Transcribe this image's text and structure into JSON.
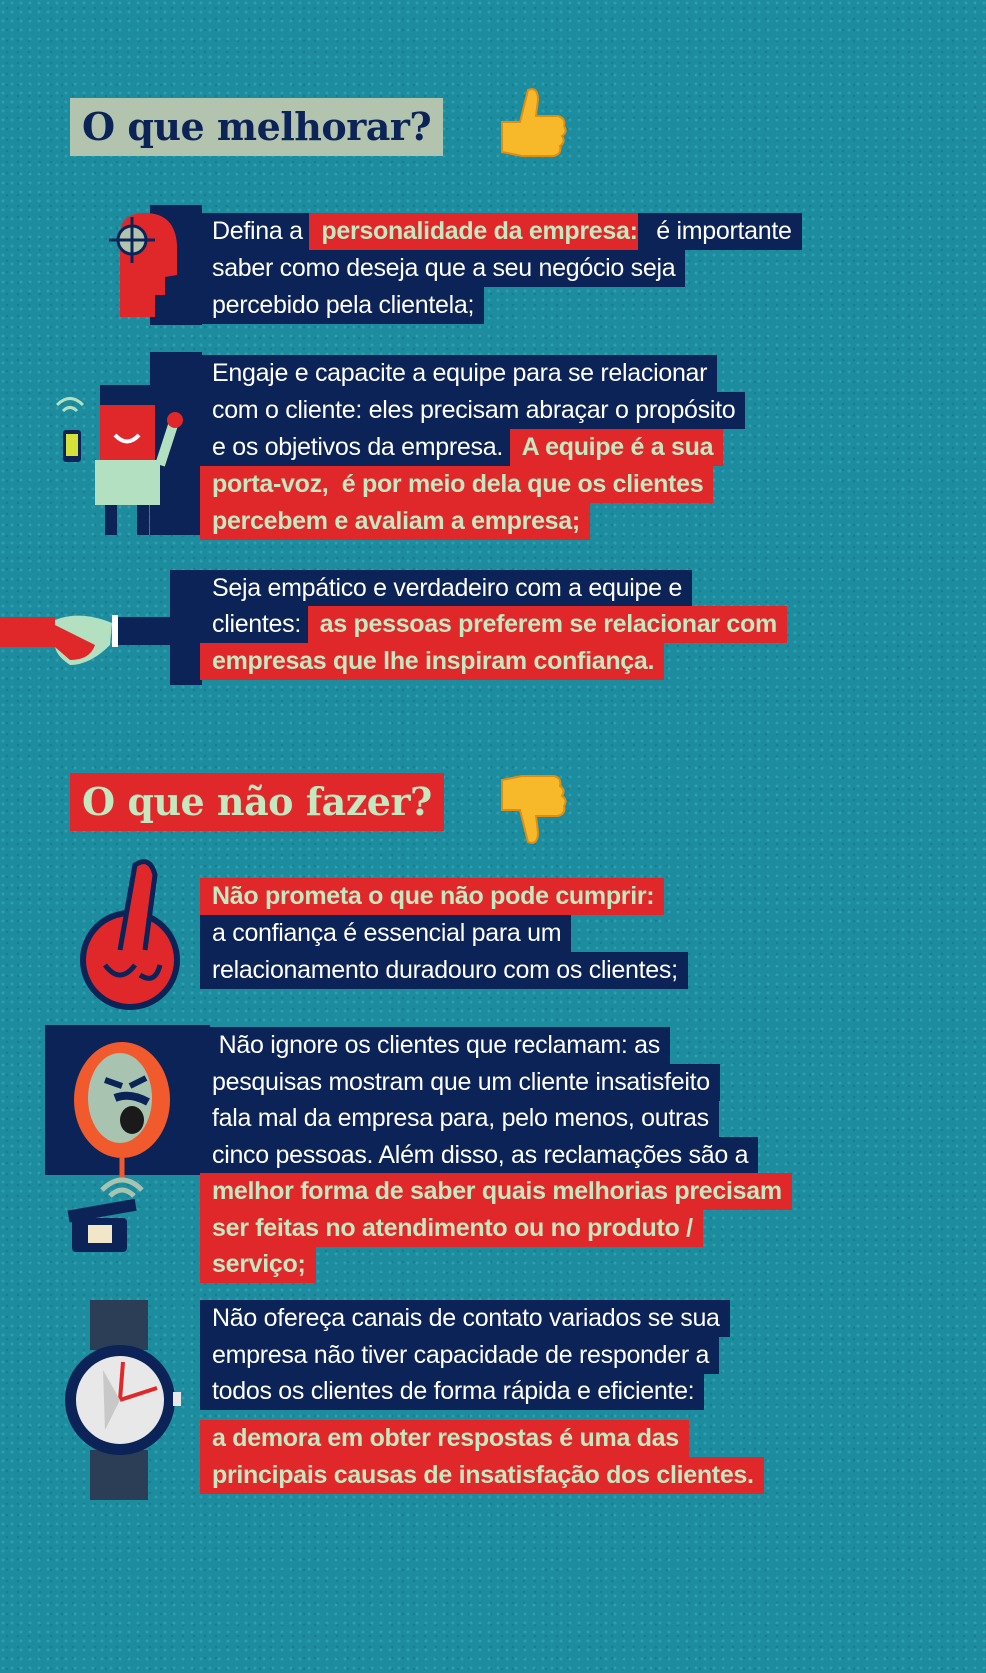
{
  "sections": [
    {
      "title": "O que melhorar?",
      "title_icon": "thumbs-up-icon"
    },
    {
      "title": "O que não fazer?",
      "title_icon": "thumbs-down-icon"
    }
  ],
  "colors": {
    "background": "#1c8c9e",
    "panel": "#0c2358",
    "highlight": "#e0282b",
    "highlight_text": "#c5e8c0",
    "title1_bg": "#b3c4ae"
  },
  "blocks": [
    {
      "icon": "head-target-icon",
      "lines": [
        [
          {
            "t": "Defina a ",
            "h": false
          },
          {
            "t": "personalidade da empresa:",
            "h": true
          },
          {
            "t": " é importante",
            "h": false
          }
        ],
        [
          {
            "t": "saber como deseja que a seu negócio seja",
            "h": false
          }
        ],
        [
          {
            "t": "percebido pela clientela;",
            "h": false
          }
        ]
      ]
    },
    {
      "icon": "employee-phone-icon",
      "lines": [
        [
          {
            "t": "Engaje e capacite a equipe para se relacionar",
            "h": false
          }
        ],
        [
          {
            "t": "com o cliente: eles precisam abraçar o propósito",
            "h": false
          }
        ],
        [
          {
            "t": "e os objetivos da empresa. ",
            "h": false
          },
          {
            "t": "A equipe é a sua",
            "h": true
          }
        ],
        [
          {
            "t": "porta-voz,  é por meio dela que os clientes",
            "h": true
          }
        ],
        [
          {
            "t": "percebem e avaliam a empresa;",
            "h": true
          }
        ]
      ]
    },
    {
      "icon": "handshake-icon",
      "lines": [
        [
          {
            "t": "Seja empático e verdadeiro com a equipe e",
            "h": false
          }
        ],
        [
          {
            "t": "clientes: ",
            "h": false
          },
          {
            "t": "as pessoas preferem se relacionar com",
            "h": true
          }
        ],
        [
          {
            "t": "empresas que lhe inspiram confiança.",
            "h": true
          }
        ]
      ]
    },
    {
      "icon": "crossed-fingers-icon",
      "lines": [
        [
          {
            "t": "Não prometa o que não pode cumprir:",
            "h": true
          }
        ],
        [
          {
            "t": "a confiança é essencial para um",
            "h": false
          }
        ],
        [
          {
            "t": "relacionamento duradouro com os clientes;",
            "h": false
          }
        ]
      ]
    },
    {
      "icon": "angry-phone-icon",
      "lines": [
        [
          {
            "t": " Não ignore os clientes que reclamam: as",
            "h": false
          }
        ],
        [
          {
            "t": "pesquisas mostram que um cliente insatisfeito",
            "h": false
          }
        ],
        [
          {
            "t": "fala mal da empresa para, pelo menos, outras",
            "h": false
          }
        ],
        [
          {
            "t": "cinco pessoas. Além disso, as reclamações são a",
            "h": false
          }
        ],
        [
          {
            "t": "melhor forma de saber quais melhorias precisam",
            "h": true
          }
        ],
        [
          {
            "t": "ser feitas no atendimento ou no produto /",
            "h": true
          }
        ],
        [
          {
            "t": "serviço;",
            "h": true
          }
        ]
      ]
    },
    {
      "icon": "wristwatch-icon",
      "lines": [
        [
          {
            "t": "Não ofereça canais de contato variados se sua",
            "h": false
          }
        ],
        [
          {
            "t": "empresa não tiver capacidade de responder a",
            "h": false
          }
        ],
        [
          {
            "t": "todos os clientes de forma rápida e eficiente:",
            "h": false
          }
        ],
        [
          {
            "t": "a demora em obter respostas é uma das",
            "h": true
          }
        ],
        [
          {
            "t": "principais causas de insatisfação dos clientes.",
            "h": true
          }
        ]
      ]
    }
  ]
}
